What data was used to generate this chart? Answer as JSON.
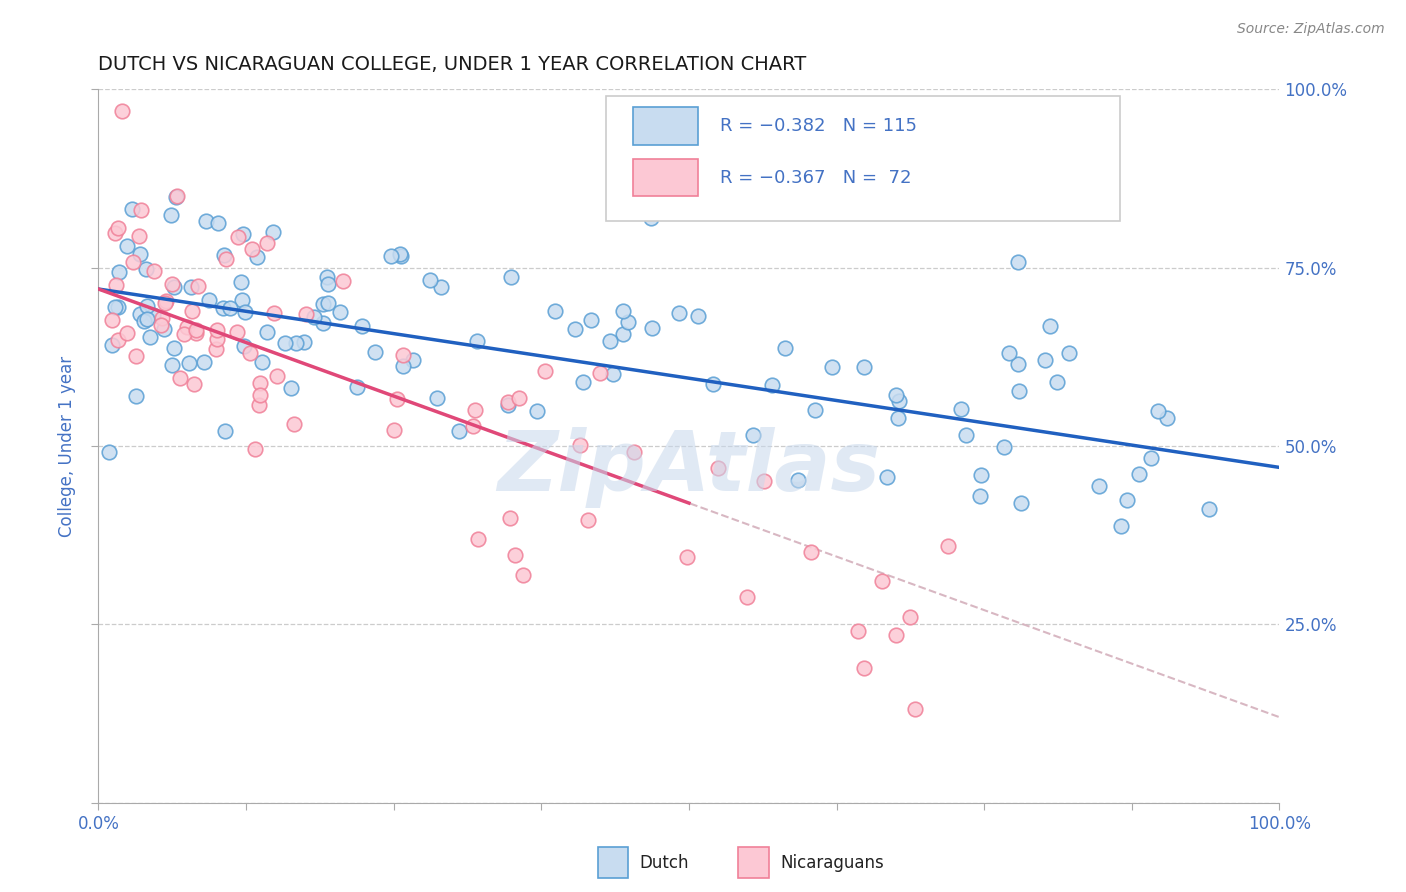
{
  "title": "DUTCH VS NICARAGUAN COLLEGE, UNDER 1 YEAR CORRELATION CHART",
  "source_text": "Source: ZipAtlas.com",
  "ylabel": "College, Under 1 year",
  "xlim": [
    0.0,
    1.0
  ],
  "ylim": [
    0.0,
    1.0
  ],
  "dutch_face_color": "#c8dcf0",
  "dutch_edge_color": "#5a9fd4",
  "nicaraguan_face_color": "#fcc8d4",
  "nicaraguan_edge_color": "#f08098",
  "blue_line_color": "#2060c0",
  "pink_line_color": "#e04878",
  "dashed_line_color": "#d4b0bc",
  "grid_color": "#cccccc",
  "background_color": "#ffffff",
  "axis_color": "#4472c4",
  "title_color": "#1a1a1a",
  "watermark_color": "#c8d8ec",
  "source_color": "#888888",
  "dutch_R": -0.382,
  "dutch_N": 115,
  "nicaraguan_R": -0.367,
  "nicaraguan_N": 72,
  "dutch_intercept": 0.72,
  "dutch_slope": -0.25,
  "nica_intercept": 0.72,
  "nica_slope": -0.6,
  "legend_text_color": "#4472c4",
  "legend_border_color": "#cccccc"
}
